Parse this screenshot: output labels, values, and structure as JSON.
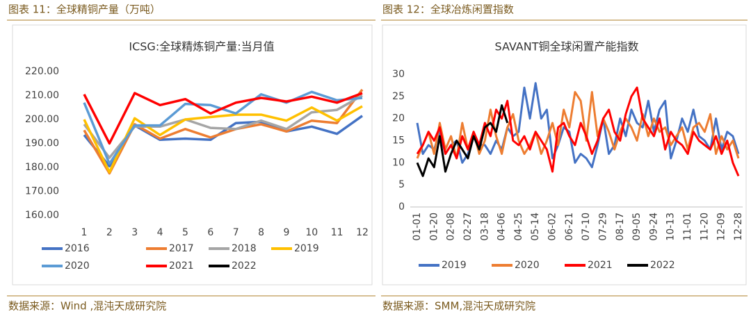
{
  "chart_data": [
    {
      "type": "line",
      "caption": "图表 11：全球精铜产量（万吨）",
      "title": "ICSG:全球精炼铜产量:当月值",
      "source": "数据来源：Wind ,混沌天成研究院",
      "categories": [
        "1",
        "2",
        "3",
        "4",
        "5",
        "6",
        "7",
        "8",
        "9",
        "10",
        "11",
        "12"
      ],
      "ylim": [
        160,
        220
      ],
      "yticks": [
        {
          "value": 160,
          "label": "160.00"
        },
        {
          "value": 170,
          "label": "170.00"
        },
        {
          "value": 180,
          "label": "180.00"
        },
        {
          "value": 190,
          "label": "190.00"
        },
        {
          "value": 200,
          "label": "200.00"
        },
        {
          "value": 210,
          "label": "210.00"
        },
        {
          "value": 220,
          "label": "220.00"
        }
      ],
      "grid": false,
      "legend": "bottom",
      "series": [
        {
          "name": "2016",
          "color": "#4472c4",
          "values": [
            193.5,
            180.5,
            197.5,
            191.5,
            192,
            191.5,
            198.5,
            199,
            195,
            197,
            194,
            201.5
          ]
        },
        {
          "name": "2017",
          "color": "#ed7d31",
          "values": [
            195.5,
            177.5,
            198,
            192,
            196,
            192.5,
            196,
            198,
            195,
            199.5,
            198.5,
            212.5
          ]
        },
        {
          "name": "2018",
          "color": "#a5a5a5",
          "values": [
            198,
            184,
            197,
            197,
            200,
            196.5,
            196,
            199.5,
            196,
            203,
            204,
            210
          ]
        },
        {
          "name": "2019",
          "color": "#ffc000",
          "values": [
            200,
            178,
            200.5,
            193.5,
            200,
            201,
            202,
            202,
            199.5,
            205,
            199.5,
            205.5
          ]
        },
        {
          "name": "2020",
          "color": "#5b9bd5",
          "values": [
            207,
            181.5,
            197.5,
            197.5,
            206.5,
            206,
            202.5,
            210.5,
            207,
            211.5,
            208,
            209
          ]
        },
        {
          "name": "2021",
          "color": "#ff0000",
          "values": [
            210.5,
            190,
            211,
            206,
            208.5,
            202.5,
            207,
            209,
            207.5,
            209.5,
            207,
            211
          ]
        },
        {
          "name": "2022",
          "color": "#000000",
          "values": [
            null,
            null,
            null,
            null,
            null,
            null,
            null,
            null,
            null,
            null,
            null,
            null
          ]
        }
      ]
    },
    {
      "type": "line",
      "caption": "图表 12：全球冶炼闲置指数",
      "title": "SAVANT铜全球闲置产能指数",
      "source": "数据来源：SMM,混沌天成研究院",
      "categories": [
        "01-01",
        null,
        null,
        "01-20",
        null,
        null,
        "02-08",
        null,
        null,
        "02-27",
        null,
        null,
        "03-18",
        null,
        null,
        "04-06",
        null,
        null,
        "04-25",
        null,
        null,
        "05-14",
        null,
        null,
        "06-02",
        null,
        null,
        "06-21",
        null,
        null,
        "07-10",
        null,
        null,
        "07-29",
        null,
        null,
        "08-17",
        null,
        null,
        "09-05",
        null,
        null,
        "09-24",
        null,
        null,
        "10-13",
        null,
        null,
        "11-01",
        null,
        null,
        "11-20",
        null,
        null,
        "12-09",
        null,
        null,
        "12-28"
      ],
      "ylim": [
        0,
        30
      ],
      "yticks": [
        0,
        5,
        10,
        15,
        20,
        25,
        30
      ],
      "grid": false,
      "legend": "bottom",
      "series": [
        {
          "name": "2019",
          "color": "#4472c4",
          "values": [
            19,
            12,
            14,
            13,
            17,
            12,
            14,
            15,
            10,
            12,
            16,
            14,
            14,
            12,
            15,
            13,
            18,
            16,
            17,
            27,
            20,
            28,
            20,
            22,
            11,
            14,
            18,
            17,
            10,
            12,
            11,
            9,
            14,
            20,
            12,
            14,
            20,
            16,
            22,
            19,
            18,
            24,
            17,
            22,
            24,
            11,
            15,
            20,
            17,
            22,
            16,
            15,
            13,
            20,
            13,
            17,
            16,
            12
          ]
        },
        {
          "name": "2020",
          "color": "#ed7d31",
          "values": [
            11,
            14,
            17,
            12,
            19,
            13,
            16,
            11,
            19,
            13,
            17,
            12,
            15,
            22,
            16,
            12,
            18,
            21,
            15,
            12,
            14,
            17,
            12,
            15,
            19,
            14,
            22,
            18,
            26,
            24,
            15,
            26,
            16,
            20,
            17,
            13,
            17,
            20,
            18,
            15,
            21,
            16,
            20,
            17,
            18,
            14,
            16,
            18,
            13,
            18,
            19,
            17,
            21,
            12,
            16,
            13,
            15,
            11
          ]
        },
        {
          "name": "2021",
          "color": "#ff0000",
          "values": [
            12,
            14,
            17,
            15,
            18,
            12,
            14,
            11,
            16,
            13,
            17,
            14,
            19,
            16,
            22,
            20,
            24,
            15,
            14,
            16,
            13,
            17,
            15,
            13,
            8,
            18,
            19,
            16,
            14,
            19,
            16,
            12,
            15,
            20,
            22,
            17,
            15,
            21,
            25,
            27,
            20,
            18,
            16,
            20,
            13,
            17,
            15,
            14,
            12,
            17,
            15,
            14,
            13,
            16,
            12,
            15,
            10,
            7
          ]
        },
        {
          "name": "2022",
          "color": "#000000",
          "values": [
            10,
            7,
            11,
            9,
            16,
            8,
            12,
            15,
            13,
            11,
            16,
            13,
            18,
            19,
            17,
            23,
            19,
            null,
            null,
            null,
            null,
            null,
            null,
            null,
            null,
            null,
            null,
            null,
            null,
            null,
            null,
            null,
            null,
            null,
            null,
            null,
            null,
            null,
            null,
            null,
            null,
            null,
            null,
            null,
            null,
            null,
            null,
            null,
            null,
            null,
            null,
            null,
            null,
            null,
            null,
            null,
            null,
            null
          ]
        }
      ]
    }
  ]
}
